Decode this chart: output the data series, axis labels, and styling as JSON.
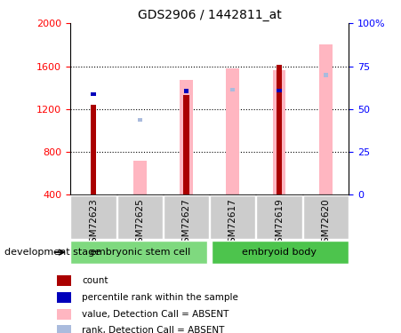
{
  "title": "GDS2906 / 1442811_at",
  "samples": [
    "GSM72623",
    "GSM72625",
    "GSM72627",
    "GSM72617",
    "GSM72619",
    "GSM72620"
  ],
  "group_names": [
    "embryonic stem cell",
    "embryoid body"
  ],
  "group_colors": [
    "#7FD97F",
    "#4DC44D"
  ],
  "ylim_left": [
    400,
    2000
  ],
  "ylim_right": [
    0,
    100
  ],
  "yticks_left": [
    400,
    800,
    1200,
    1600,
    2000
  ],
  "yticks_right": [
    0,
    25,
    50,
    75,
    100
  ],
  "count_color": "#AA0000",
  "rank_color": "#0000BB",
  "absent_value_color": "#FFB6C1",
  "absent_rank_color": "#AABBDD",
  "count_values": [
    1240,
    null,
    1330,
    null,
    1610,
    null
  ],
  "rank_values": [
    1320,
    null,
    1350,
    null,
    1355,
    null
  ],
  "absent_value_values": [
    null,
    720,
    1470,
    1580,
    1560,
    1800
  ],
  "absent_rank_values": [
    null,
    1080,
    null,
    1360,
    null,
    1500
  ],
  "development_stage_label": "development stage",
  "legend_items": [
    {
      "label": "count",
      "color": "#AA0000"
    },
    {
      "label": "percentile rank within the sample",
      "color": "#0000BB"
    },
    {
      "label": "value, Detection Call = ABSENT",
      "color": "#FFB6C1"
    },
    {
      "label": "rank, Detection Call = ABSENT",
      "color": "#AABBDD"
    }
  ]
}
